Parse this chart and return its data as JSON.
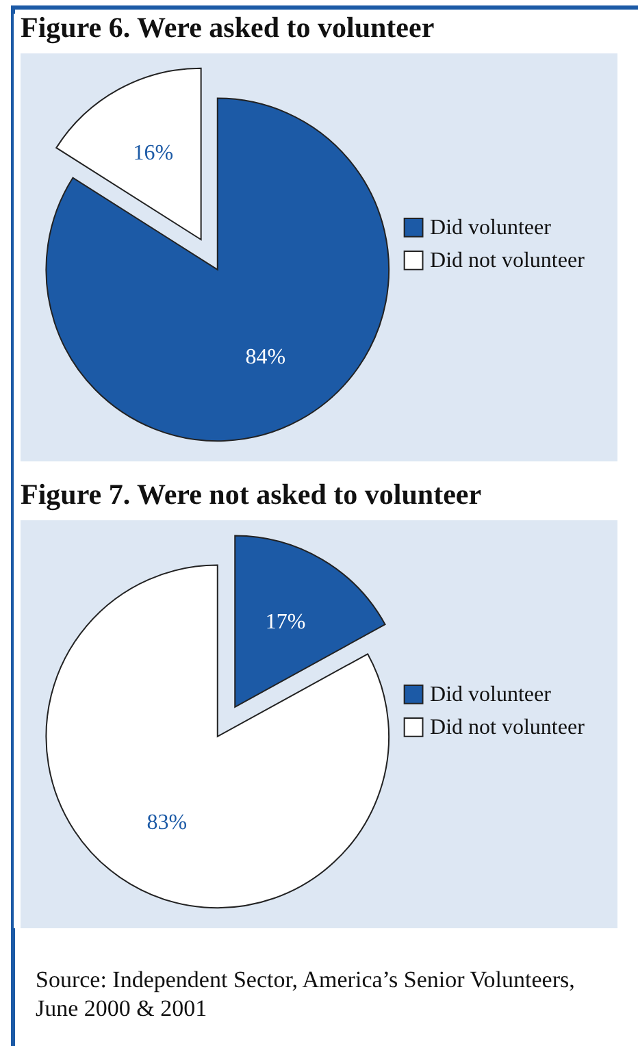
{
  "chart_data": [
    {
      "type": "pie",
      "title": "Figure 6. Were asked to volunteer",
      "categories": [
        "Did volunteer",
        "Did not volunteer"
      ],
      "values": [
        84,
        16
      ],
      "colors": [
        "#1c5aa6",
        "#ffffff"
      ],
      "value_labels": [
        "84%",
        "16%"
      ],
      "legend": "right"
    },
    {
      "type": "pie",
      "title": "Figure 7. Were not asked to volunteer",
      "categories": [
        "Did volunteer",
        "Did not volunteer"
      ],
      "values": [
        17,
        83
      ],
      "colors": [
        "#1c5aa6",
        "#ffffff"
      ],
      "value_labels": [
        "17%",
        "83%"
      ],
      "legend": "right",
      "annotations": [
        "Source: Independent Sector, America’s Senior Volunteers, June 2000 & 2001"
      ]
    }
  ]
}
